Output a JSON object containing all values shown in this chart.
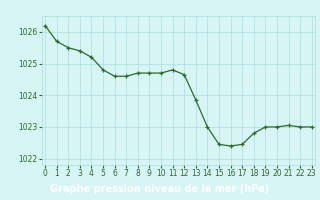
{
  "x": [
    0,
    1,
    2,
    3,
    4,
    5,
    6,
    7,
    8,
    9,
    10,
    11,
    12,
    13,
    14,
    15,
    16,
    17,
    18,
    19,
    20,
    21,
    22,
    23
  ],
  "y": [
    1026.2,
    1025.7,
    1025.5,
    1025.4,
    1025.2,
    1024.8,
    1024.6,
    1024.6,
    1024.7,
    1024.7,
    1024.7,
    1024.8,
    1024.65,
    1023.85,
    1023.0,
    1022.45,
    1022.4,
    1022.45,
    1022.8,
    1023.0,
    1023.0,
    1023.05,
    1023.0,
    1023.0
  ],
  "line_color": "#2d6a2d",
  "marker_color": "#2d6a2d",
  "bg_color": "#d8f5f5",
  "grid_color": "#aadddd",
  "label_bg_color": "#2d6a2d",
  "label_text_color": "#ffffff",
  "xlabel": "Graphe pression niveau de la mer (hPa)",
  "ylim": [
    1021.8,
    1026.5
  ],
  "yticks": [
    1022,
    1023,
    1024,
    1025,
    1026
  ],
  "xticks": [
    0,
    1,
    2,
    3,
    4,
    5,
    6,
    7,
    8,
    9,
    10,
    11,
    12,
    13,
    14,
    15,
    16,
    17,
    18,
    19,
    20,
    21,
    22,
    23
  ],
  "tick_fontsize": 5.5,
  "xlabel_fontsize": 7.0,
  "marker_size": 3.5,
  "linewidth": 0.9
}
